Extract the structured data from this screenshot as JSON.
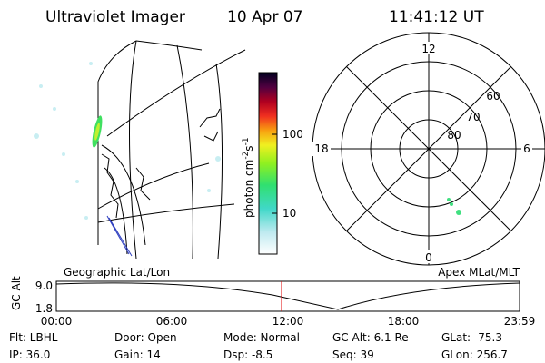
{
  "header": {
    "instrument": "Ultraviolet Imager",
    "date": "10 Apr 07",
    "time": "11:41:12 UT"
  },
  "colorbar": {
    "unit": "photon cm",
    "unit_exp": "-2",
    "unit2": "s",
    "unit2_exp": "-1",
    "ticks": [
      "100",
      "10"
    ]
  },
  "polar": {
    "mlt_labels": [
      "12",
      "18",
      "6",
      "0"
    ],
    "lat_labels": [
      "60",
      "70",
      "80"
    ]
  },
  "timeline": {
    "left_label": "Geographic Lat/Lon",
    "right_label": "Apex MLat/MLT",
    "axis_label": "GC Alt",
    "y_labels": [
      "9.0",
      "1.8"
    ],
    "x_labels": [
      "00:00",
      "06:00",
      "12:00",
      "18:00",
      "23:59"
    ]
  },
  "footer": {
    "rows": [
      [
        "Flt: LBHL",
        "Door: Open",
        "Mode: Normal",
        "GC Alt: 6.1 Re",
        "GLat: -75.3"
      ],
      [
        "IP: 36.0",
        "Gain: 14",
        "Dsp:   -8.5",
        "Seq: 39",
        "GLon: 256.7"
      ]
    ]
  }
}
